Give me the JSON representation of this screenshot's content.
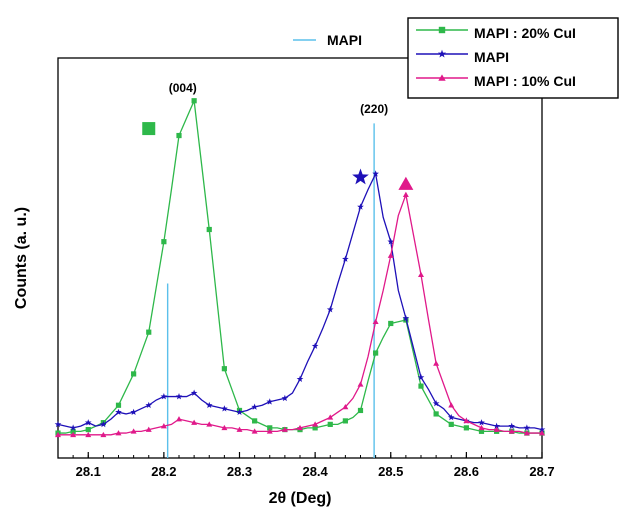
{
  "chart_data": {
    "type": "line",
    "title": "",
    "xlabel": "2θ (Deg)",
    "ylabel": "Counts (a. u.)",
    "xlim": [
      28.06,
      28.7
    ],
    "ylim": [
      0,
      100
    ],
    "x_ticks": [
      28.1,
      28.2,
      28.3,
      28.4,
      28.5,
      28.6,
      28.7
    ],
    "x_tick_labels": [
      "28.1",
      "28.2",
      "28.3",
      "28.4",
      "28.5",
      "28.6",
      "28.7"
    ],
    "y_tick_labels_shown": false,
    "grid": false,
    "legend": {
      "placement": "top-right",
      "entries": [
        "MAPI : 20% CuI",
        "MAPI",
        "MAPI : 10% CuI"
      ]
    },
    "reference_legend": {
      "placement": "top-center",
      "label": "MAPI",
      "color": "#5bc0eb"
    },
    "reference_lines": [
      {
        "x": 28.205,
        "height": 47
      },
      {
        "x": 28.478,
        "height": 93
      }
    ],
    "annotations": [
      {
        "text": "(004)",
        "x": 28.225,
        "y": 102
      },
      {
        "text": "(220)",
        "x": 28.478,
        "y": 96
      }
    ],
    "peak_markers": [
      {
        "series": "MAPI : 20% CuI",
        "x": 28.18,
        "y": 91.5
      },
      {
        "series": "MAPI",
        "x": 28.46,
        "y": 77.5
      },
      {
        "series": "MAPI : 10% CuI",
        "x": 28.52,
        "y": 75.5
      }
    ],
    "series": [
      {
        "name": "MAPI : 20% CuI",
        "color": "#2eb84a",
        "marker": "square",
        "x": [
          28.06,
          28.07,
          28.08,
          28.09,
          28.1,
          28.11,
          28.12,
          28.13,
          28.14,
          28.15,
          28.16,
          28.17,
          28.18,
          28.19,
          28.2,
          28.21,
          28.22,
          28.23,
          28.24,
          28.25,
          28.26,
          28.27,
          28.28,
          28.29,
          28.3,
          28.31,
          28.32,
          28.33,
          28.34,
          28.35,
          28.36,
          28.37,
          28.38,
          28.39,
          28.4,
          28.41,
          28.42,
          28.43,
          28.44,
          28.45,
          28.46,
          28.47,
          28.48,
          28.49,
          28.5,
          28.51,
          28.52,
          28.53,
          28.54,
          28.55,
          28.56,
          28.57,
          28.58,
          28.59,
          28.6,
          28.61,
          28.62,
          28.63,
          28.64,
          28.65,
          28.66,
          28.67,
          28.68,
          28.69,
          28.7
        ],
        "values": [
          4.0,
          4.0,
          4.5,
          4.5,
          5.0,
          6.0,
          7.0,
          9.5,
          12.0,
          16.5,
          21.0,
          27.0,
          33.0,
          46.0,
          59.0,
          74.0,
          89.5,
          94.5,
          99.5,
          81.0,
          62.5,
          42.5,
          22.5,
          16.5,
          10.5,
          9.0,
          7.5,
          6.5,
          5.5,
          5.5,
          5.0,
          5.0,
          5.0,
          5.5,
          5.5,
          6.0,
          6.5,
          6.5,
          7.5,
          8.5,
          10.5,
          19.0,
          27.0,
          31.5,
          35.5,
          36.0,
          36.5,
          27.0,
          17.5,
          13.5,
          9.5,
          8.0,
          6.5,
          6.0,
          5.5,
          5.0,
          4.5,
          4.5,
          4.5,
          4.5,
          4.5,
          4.0,
          4.0,
          4.0,
          4.0
        ],
        "marker_every": 2
      },
      {
        "name": "MAPI",
        "color": "#1e10b8",
        "marker": "star",
        "x": [
          28.06,
          28.07,
          28.08,
          28.09,
          28.1,
          28.11,
          28.12,
          28.13,
          28.14,
          28.15,
          28.16,
          28.17,
          28.18,
          28.19,
          28.2,
          28.21,
          28.22,
          28.23,
          28.24,
          28.25,
          28.26,
          28.27,
          28.28,
          28.29,
          28.3,
          28.31,
          28.32,
          28.33,
          28.34,
          28.35,
          28.36,
          28.37,
          28.38,
          28.39,
          28.4,
          28.41,
          28.42,
          28.43,
          28.44,
          28.45,
          28.46,
          28.47,
          28.48,
          28.49,
          28.5,
          28.51,
          28.52,
          28.53,
          28.54,
          28.55,
          28.56,
          28.57,
          28.58,
          28.59,
          28.6,
          28.61,
          28.62,
          28.63,
          28.64,
          28.65,
          28.66,
          28.67,
          28.68,
          28.69,
          28.7
        ],
        "values": [
          6.5,
          6.0,
          5.5,
          6.0,
          7.0,
          6.0,
          6.5,
          8.0,
          10.0,
          9.5,
          10.0,
          11.0,
          12.0,
          13.5,
          14.5,
          14.5,
          14.5,
          14.5,
          15.5,
          13.5,
          12.0,
          11.5,
          11.0,
          10.5,
          10.0,
          10.5,
          11.5,
          12.0,
          13.0,
          13.5,
          14.0,
          15.5,
          19.5,
          24.5,
          29.0,
          34.0,
          39.5,
          47.0,
          54.0,
          61.5,
          69.0,
          74.0,
          78.5,
          66.0,
          59.0,
          45.0,
          37.0,
          28.5,
          20.0,
          16.5,
          12.5,
          11.0,
          8.5,
          8.0,
          7.5,
          7.0,
          7.0,
          6.5,
          6.0,
          6.0,
          6.0,
          5.5,
          5.5,
          5.5,
          5.0
        ],
        "marker_every": 2
      },
      {
        "name": "MAPI : 10% CuI",
        "color": "#e0198a",
        "marker": "triangle",
        "x": [
          28.06,
          28.07,
          28.08,
          28.09,
          28.1,
          28.11,
          28.12,
          28.13,
          28.14,
          28.15,
          28.16,
          28.17,
          28.18,
          28.19,
          28.2,
          28.21,
          28.22,
          28.23,
          28.24,
          28.25,
          28.26,
          28.27,
          28.28,
          28.29,
          28.3,
          28.31,
          28.32,
          28.33,
          28.34,
          28.35,
          28.36,
          28.37,
          28.38,
          28.39,
          28.4,
          28.41,
          28.42,
          28.43,
          28.44,
          28.45,
          28.46,
          28.47,
          28.48,
          28.49,
          28.5,
          28.51,
          28.52,
          28.53,
          28.54,
          28.55,
          28.56,
          28.57,
          28.58,
          28.59,
          28.6,
          28.61,
          28.62,
          28.63,
          28.64,
          28.65,
          28.66,
          28.67,
          28.68,
          28.69,
          28.7
        ],
        "values": [
          3.5,
          3.5,
          3.5,
          3.5,
          3.5,
          3.5,
          3.5,
          3.5,
          4.0,
          4.0,
          4.5,
          4.5,
          5.0,
          5.5,
          6.0,
          6.5,
          8.0,
          7.5,
          7.0,
          6.5,
          6.5,
          6.0,
          5.5,
          5.5,
          5.0,
          5.0,
          4.5,
          4.5,
          4.5,
          4.5,
          5.0,
          5.0,
          5.5,
          6.0,
          6.5,
          7.5,
          8.5,
          10.0,
          11.5,
          14.0,
          18.0,
          26.0,
          36.0,
          45.0,
          55.0,
          66.5,
          72.5,
          61.0,
          49.5,
          36.5,
          24.0,
          18.0,
          12.0,
          9.0,
          7.5,
          6.5,
          5.5,
          5.0,
          5.0,
          4.5,
          4.5,
          4.5,
          4.0,
          4.0,
          4.0
        ],
        "marker_every": 2
      }
    ]
  }
}
